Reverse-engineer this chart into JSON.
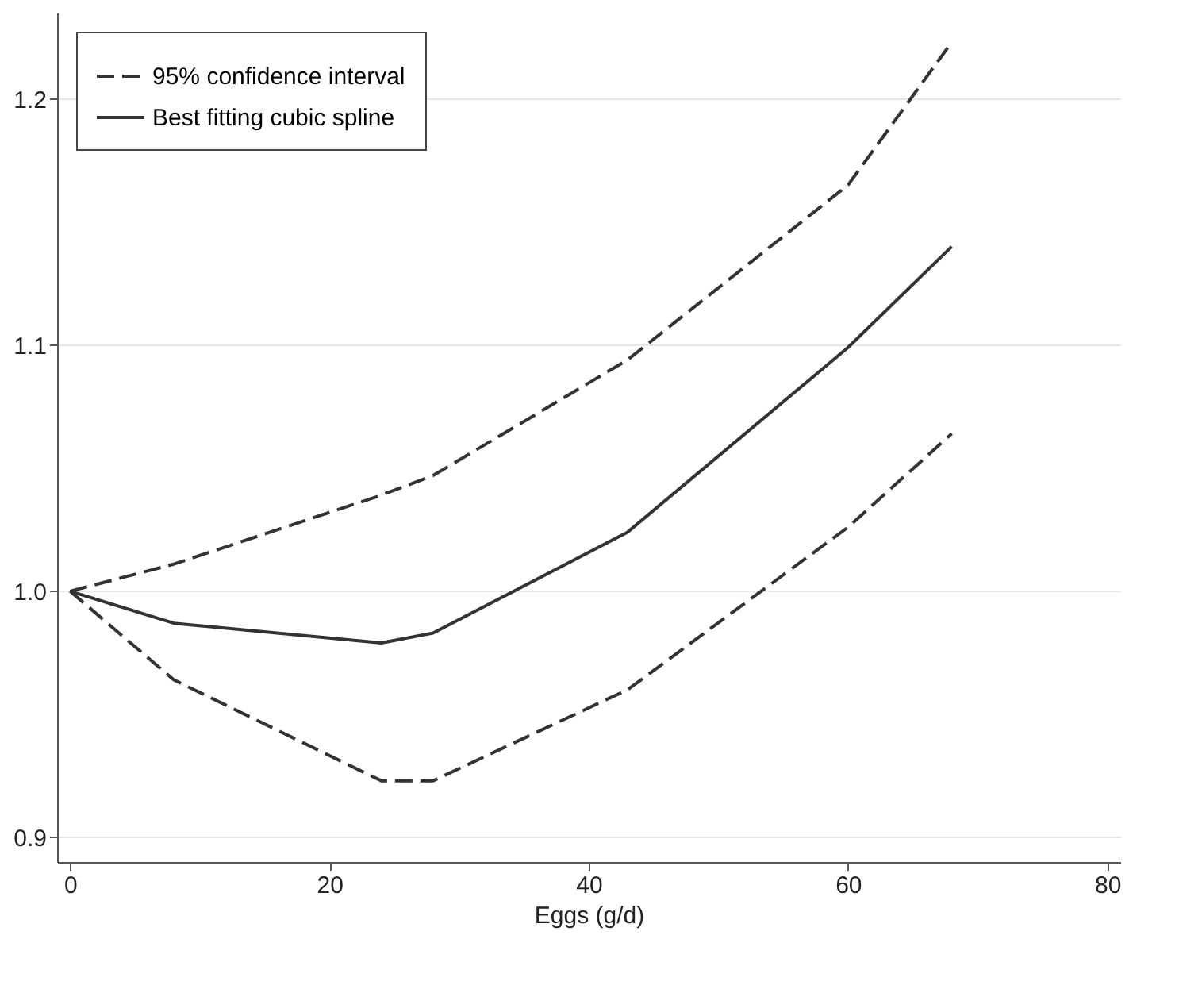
{
  "chart_data": {
    "type": "line",
    "xlabel": "Eggs (g/d)",
    "xlim": [
      -1,
      81
    ],
    "xticks": [
      0,
      20,
      40,
      60,
      80
    ],
    "ylim": [
      0.89,
      1.235
    ],
    "yticks": [
      0.9,
      {
        "value": 1.0,
        "label": "1.0"
      },
      1.1,
      1.2
    ],
    "grid": "y",
    "legend": "top left",
    "marker": "none",
    "series": [
      {
        "name": "95% confidence interval",
        "color": "#333333",
        "line_style": "dashed",
        "x": [
          0,
          8,
          24,
          28,
          43,
          60,
          68
        ],
        "values": [
          1.0,
          1.011,
          1.039,
          1.047,
          1.094,
          1.165,
          1.223
        ]
      },
      {
        "name": "Best fitting cubic spline",
        "color": "#333333",
        "line_style": "solid",
        "x": [
          0,
          8,
          24,
          28,
          43,
          60,
          68
        ],
        "values": [
          1.0,
          0.987,
          0.979,
          0.983,
          1.024,
          1.099,
          1.14
        ]
      },
      {
        "color": "#333333",
        "line_style": "dashed",
        "x": [
          0,
          8,
          24,
          28,
          43,
          60,
          68
        ],
        "values": [
          1.0,
          0.964,
          0.923,
          0.923,
          0.96,
          1.026,
          1.064
        ]
      }
    ]
  }
}
